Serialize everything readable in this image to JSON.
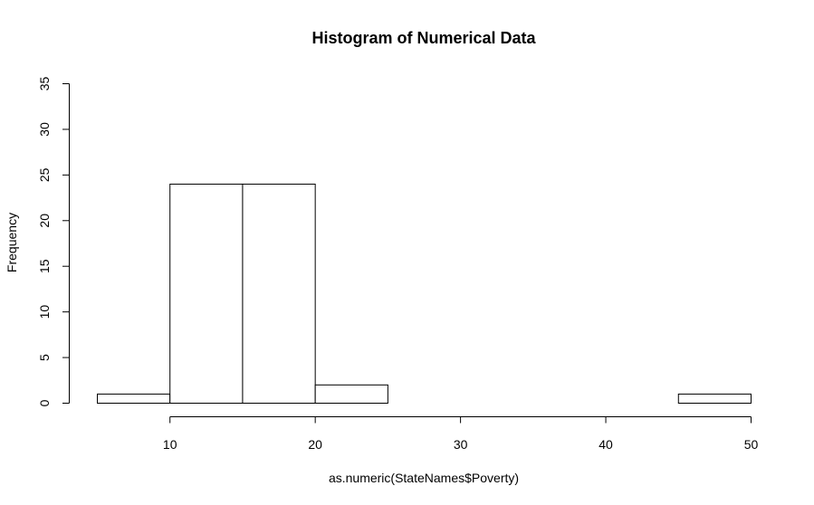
{
  "chart_data": {
    "type": "bar",
    "title": "Histogram of Numerical Data",
    "xlabel": "as.numeric(StateNames$Poverty)",
    "ylabel": "Frequency",
    "bins": [
      {
        "start": 5,
        "end": 10,
        "count": 1
      },
      {
        "start": 10,
        "end": 15,
        "count": 24
      },
      {
        "start": 15,
        "end": 20,
        "count": 24
      },
      {
        "start": 20,
        "end": 25,
        "count": 2
      },
      {
        "start": 25,
        "end": 30,
        "count": 0
      },
      {
        "start": 30,
        "end": 35,
        "count": 0
      },
      {
        "start": 35,
        "end": 40,
        "count": 0
      },
      {
        "start": 40,
        "end": 45,
        "count": 0
      },
      {
        "start": 45,
        "end": 50,
        "count": 1
      }
    ],
    "xlim": [
      5,
      50
    ],
    "ylim": [
      0,
      35
    ],
    "x_ticks": [
      10,
      20,
      30,
      40,
      50
    ],
    "y_ticks": [
      0,
      5,
      10,
      15,
      20,
      25,
      30,
      35
    ],
    "grid": false,
    "colors": {
      "bar_fill": "#ffffff",
      "bar_stroke": "#000000",
      "axis": "#000000",
      "text": "#000000"
    }
  }
}
